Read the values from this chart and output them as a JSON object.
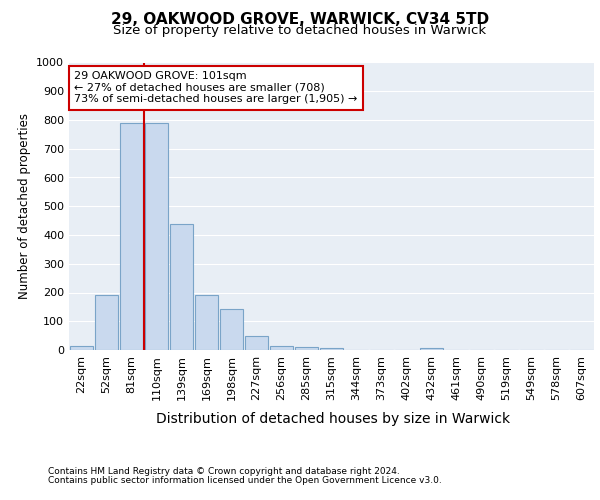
{
  "title1": "29, OAKWOOD GROVE, WARWICK, CV34 5TD",
  "title2": "Size of property relative to detached houses in Warwick",
  "xlabel": "Distribution of detached houses by size in Warwick",
  "ylabel": "Number of detached properties",
  "bar_labels": [
    "22sqm",
    "52sqm",
    "81sqm",
    "110sqm",
    "139sqm",
    "169sqm",
    "198sqm",
    "227sqm",
    "256sqm",
    "285sqm",
    "315sqm",
    "344sqm",
    "373sqm",
    "402sqm",
    "432sqm",
    "461sqm",
    "490sqm",
    "519sqm",
    "549sqm",
    "578sqm",
    "607sqm"
  ],
  "bar_values": [
    15,
    193,
    790,
    790,
    440,
    193,
    143,
    48,
    15,
    10,
    7,
    0,
    0,
    0,
    8,
    0,
    0,
    0,
    0,
    0,
    0
  ],
  "bar_color": "#c9d9ee",
  "bar_edge_color": "#7aa4c8",
  "vline_color": "#cc0000",
  "vline_pos": 2.5,
  "ylim": [
    0,
    1000
  ],
  "yticks": [
    0,
    100,
    200,
    300,
    400,
    500,
    600,
    700,
    800,
    900,
    1000
  ],
  "annotation_text": "29 OAKWOOD GROVE: 101sqm\n← 27% of detached houses are smaller (708)\n73% of semi-detached houses are larger (1,905) →",
  "annotation_box_color": "#ffffff",
  "annotation_box_edge_color": "#cc0000",
  "footer1": "Contains HM Land Registry data © Crown copyright and database right 2024.",
  "footer2": "Contains public sector information licensed under the Open Government Licence v3.0.",
  "background_color": "#e8eef5",
  "grid_color": "#ffffff",
  "title1_fontsize": 11,
  "title2_fontsize": 9.5,
  "ylabel_fontsize": 8.5,
  "xlabel_fontsize": 10,
  "tick_fontsize": 8,
  "annot_fontsize": 8,
  "footer_fontsize": 6.5
}
